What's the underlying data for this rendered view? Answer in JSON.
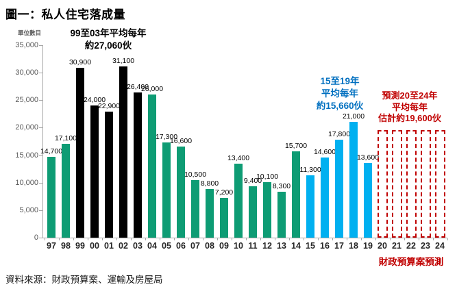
{
  "title": "圖一：私人住宅落成量",
  "footer": {
    "forecast_caption": "財政預算案預測",
    "source": "資料來源：財政預算案、運輸及房屋局"
  },
  "annotations": {
    "avg_99_03": {
      "lines": [
        "99至03年平均每年",
        "約27,060伙"
      ],
      "color": "#000000"
    },
    "avg_15_19": {
      "lines": [
        "15至19年",
        "平均每年",
        "約15,660伙"
      ],
      "color": "#0070c0"
    },
    "forecast_20_24": {
      "lines": [
        "預測20至24年",
        "平均每年",
        "估計約19,600伙"
      ],
      "color": "#c00000"
    }
  },
  "colors": {
    "bar_green": "#0e9c74",
    "bar_black": "#000000",
    "bar_blue": "#00b0f0",
    "forecast_red": "#c00000",
    "annotation_blue": "#0070c0",
    "axis_gray": "#a6a6a6",
    "tick_label_gray": "#595959"
  },
  "chart_data": {
    "type": "bar",
    "title": "圖一：私人住宅落成量",
    "xlabel": "",
    "ylabel": "單位數目",
    "ylim": [
      0,
      35000
    ],
    "ytick_step": 5000,
    "grid": false,
    "legend": "none",
    "categories": [
      "97",
      "98",
      "99",
      "00",
      "01",
      "02",
      "03",
      "04",
      "05",
      "06",
      "07",
      "08",
      "09",
      "10",
      "11",
      "12",
      "13",
      "14",
      "15",
      "16",
      "17",
      "18",
      "19",
      "20",
      "21",
      "22",
      "23",
      "24"
    ],
    "values": [
      14700,
      17100,
      30900,
      24000,
      22900,
      31100,
      26400,
      26000,
      17300,
      16600,
      10500,
      8800,
      7200,
      13400,
      9400,
      10100,
      8300,
      15700,
      11300,
      14600,
      17800,
      21000,
      13600,
      19600,
      19600,
      19600,
      19600,
      19600
    ],
    "bar_styles": [
      "green",
      "green",
      "black",
      "black",
      "black",
      "black",
      "black",
      "green",
      "green",
      "green",
      "green",
      "green",
      "green",
      "green",
      "green",
      "green",
      "green",
      "green",
      "blue",
      "blue",
      "blue",
      "blue",
      "blue",
      "forecast",
      "forecast",
      "forecast",
      "forecast",
      "forecast"
    ],
    "forecast_note": "20至24年為預測值，估計約19,600伙，不設個別數值標籤"
  }
}
